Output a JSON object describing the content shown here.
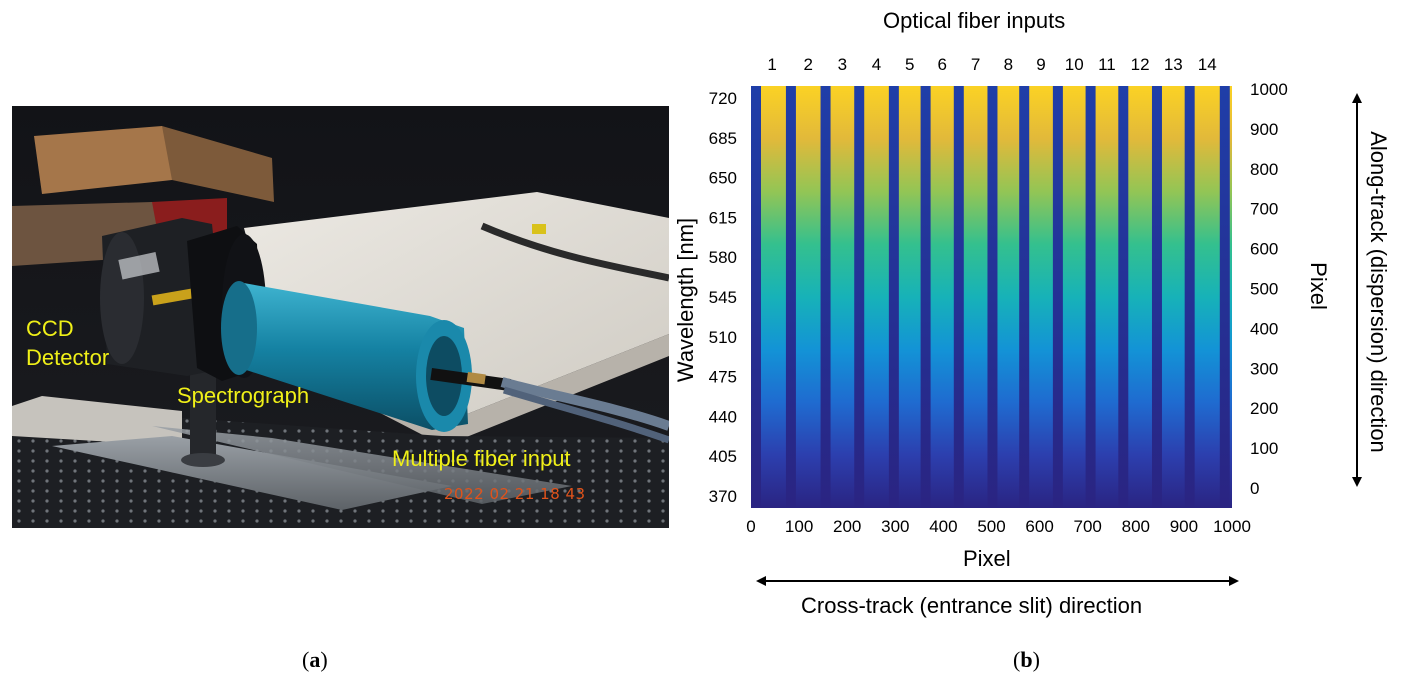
{
  "panel_a": {
    "labels": {
      "ccd": "CCD Detector",
      "spectrograph": "Spectrograph",
      "fiber_input": "Multiple fiber input",
      "timestamp": "2022 02 21 18 43"
    },
    "colors": {
      "label": "#f0f018",
      "timestamp": "#e0531b",
      "spectrograph_body": "#1a86a6"
    },
    "caption_letter": "a"
  },
  "panel_b": {
    "top_title": "Optical fiber inputs",
    "left_ylabel": "Wavelength [nm]",
    "bottom_xlabel": "Pixel",
    "right_ylabel_1": "Pixel",
    "right_ylabel_2": "Along-track (dispersion) direction",
    "cross_label": "Cross-track (entrance slit) direction",
    "caption_letter": "b"
  },
  "chart_data": {
    "type": "heatmap",
    "title": "Optical fiber inputs",
    "fiber_numbers": [
      "1",
      "2",
      "3",
      "4",
      "5",
      "6",
      "7",
      "8",
      "9",
      "10",
      "11",
      "12",
      "13",
      "14"
    ],
    "xlabel": "Pixel",
    "ylabel": "Wavelength [nm]",
    "y2label": "Pixel",
    "x_ticks": [
      0,
      100,
      200,
      300,
      400,
      500,
      600,
      700,
      800,
      900,
      1000
    ],
    "y_left_ticks": [
      720,
      685,
      650,
      615,
      580,
      545,
      510,
      475,
      440,
      405,
      370
    ],
    "y_right_ticks": [
      1000,
      900,
      800,
      700,
      600,
      500,
      400,
      300,
      200,
      100,
      0
    ],
    "xlim": [
      0,
      1000
    ],
    "ylim_pixel": [
      0,
      1000
    ],
    "colormap": "parula",
    "colormap_stops": [
      "#2a2482",
      "#2c3fae",
      "#1f6bd0",
      "#1393d6",
      "#17b2b8",
      "#34c08e",
      "#93c555",
      "#e2b93a",
      "#fbd224"
    ],
    "fiber_gap_pixel_centers": [
      5,
      83,
      155,
      225,
      297,
      363,
      432,
      502,
      568,
      638,
      706,
      774,
      844,
      912,
      985
    ]
  }
}
